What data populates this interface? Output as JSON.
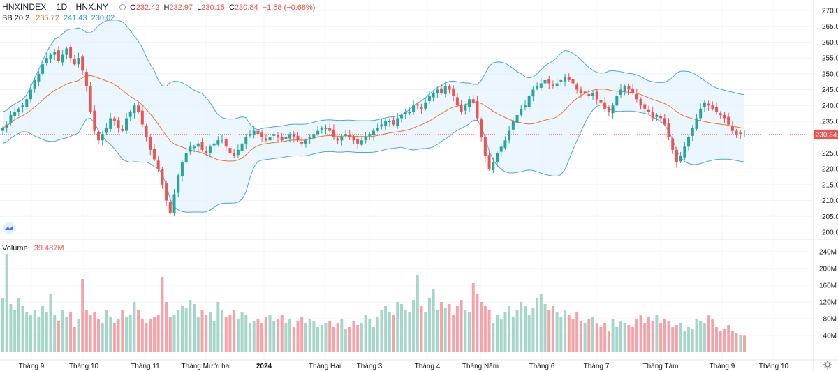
{
  "header": {
    "symbol": "HNXINDEX",
    "interval": "1D",
    "exchange": "HNX.NY",
    "o_label": "O",
    "o_value": "232.42",
    "h_label": "H",
    "h_value": "232.97",
    "l_label": "L",
    "l_value": "230.15",
    "c_label": "C",
    "c_value": "230.84",
    "change": "−1.58 (−0.68%)",
    "bb_label": "BB 20 2",
    "bb_basis": "235.72",
    "bb_upper": "241.43",
    "bb_lower": "230.02",
    "volume_label": "Volume",
    "volume_value": "39.487M",
    "price_tag": "230.84"
  },
  "colors": {
    "up": "#26a69a",
    "down": "#ef5350",
    "vol_up": "#a5d6c9",
    "vol_down": "#f5a3a9",
    "basis": "#f0761d",
    "band": "#4da3e6",
    "band_fill": "#e3f2fd"
  },
  "chart_data": {
    "type": "candlestick",
    "title": "HNXINDEX 1D HNX.NY",
    "price_axis": {
      "min": 200,
      "max": 270,
      "ticks": [
        "270.00",
        "265.00",
        "260.00",
        "255.00",
        "250.00",
        "245.00",
        "240.00",
        "235.00",
        "230.00",
        "225.00",
        "220.00",
        "215.00",
        "210.00",
        "205.00",
        "200.00"
      ]
    },
    "volume_axis": {
      "unit": "M",
      "ticks": [
        "240M",
        "200M",
        "160M",
        "120M",
        "80M",
        "40M"
      ]
    },
    "time_axis": [
      "Tháng 9",
      "Tháng 10",
      "Tháng 11",
      "Tháng Mười hai",
      "2024",
      "Tháng Hai",
      "Tháng 3",
      "Tháng 4",
      "Tháng Năm",
      "Tháng 6",
      "Tháng 7",
      "Tháng Tám",
      "Tháng 9",
      "Tháng 10"
    ],
    "close": [
      233,
      234,
      237,
      238,
      239,
      240,
      242,
      245,
      248,
      250,
      253,
      255,
      256,
      257,
      254,
      256,
      258,
      255,
      253,
      255,
      251,
      246,
      238,
      232,
      229,
      231,
      233,
      236,
      235,
      233,
      232,
      236,
      238,
      240,
      238,
      234,
      230,
      226,
      223,
      220,
      215,
      210,
      206,
      212,
      218,
      222,
      225,
      227,
      227,
      228,
      226,
      225,
      227,
      228,
      229,
      229,
      227,
      225,
      224,
      226,
      228,
      230,
      231,
      232,
      231,
      230,
      229,
      230,
      231,
      230,
      229,
      230,
      231,
      230,
      229,
      228,
      229,
      230,
      231,
      232,
      233,
      233,
      232,
      230,
      229,
      230,
      231,
      230,
      229,
      228,
      229,
      230,
      231,
      232,
      233,
      234,
      235,
      235,
      234,
      236,
      237,
      238,
      238,
      240,
      240,
      239,
      241,
      243,
      244,
      245,
      244,
      246,
      245,
      243,
      240,
      238,
      240,
      242,
      241,
      236,
      230,
      224,
      220,
      222,
      225,
      227,
      229,
      232,
      235,
      237,
      239,
      240,
      243,
      245,
      246,
      247,
      248,
      247,
      246,
      247,
      248,
      249,
      248,
      247,
      245,
      244,
      244,
      243,
      244,
      242,
      241,
      239,
      238,
      240,
      243,
      245,
      246,
      245,
      244,
      242,
      240,
      239,
      238,
      236,
      237,
      236,
      234,
      230,
      226,
      222,
      224,
      227,
      230,
      233,
      236,
      239,
      241,
      240,
      239,
      238,
      237,
      236,
      234,
      232,
      231,
      231,
      230.84
    ],
    "volume_M": [
      130,
      235,
      115,
      100,
      130,
      110,
      95,
      90,
      100,
      85,
      110,
      95,
      140,
      90,
      75,
      100,
      85,
      95,
      60,
      80,
      175,
      100,
      90,
      95,
      80,
      70,
      100,
      85,
      70,
      80,
      100,
      85,
      90,
      120,
      100,
      80,
      70,
      80,
      85,
      90,
      180,
      120,
      85,
      90,
      100,
      110,
      105,
      125,
      115,
      85,
      100,
      90,
      95,
      75,
      120,
      100,
      85,
      90,
      100,
      80,
      95,
      90,
      70,
      75,
      80,
      70,
      85,
      90,
      75,
      80,
      90,
      70,
      80,
      60,
      75,
      85,
      70,
      80,
      75,
      60,
      65,
      70,
      75,
      60,
      70,
      80,
      55,
      60,
      75,
      65,
      70,
      90,
      80,
      60,
      85,
      100,
      110,
      95,
      90,
      120,
      115,
      100,
      95,
      125,
      185,
      110,
      95,
      130,
      150,
      100,
      120,
      105,
      115,
      90,
      110,
      125,
      100,
      95,
      165,
      140,
      120,
      110,
      100,
      70,
      90,
      80,
      95,
      110,
      85,
      100,
      120,
      110,
      90,
      105,
      130,
      140,
      115,
      100,
      110,
      95,
      85,
      100,
      90,
      80,
      95,
      75,
      70,
      80,
      85,
      70,
      60,
      70,
      50,
      80,
      60,
      75,
      70,
      65,
      60,
      80,
      90,
      70,
      85,
      75,
      90,
      70,
      80,
      75,
      60,
      65,
      70,
      50,
      60,
      55,
      80,
      75,
      70,
      90,
      80,
      60,
      50,
      55,
      65,
      50,
      45,
      40,
      39.487
    ]
  }
}
